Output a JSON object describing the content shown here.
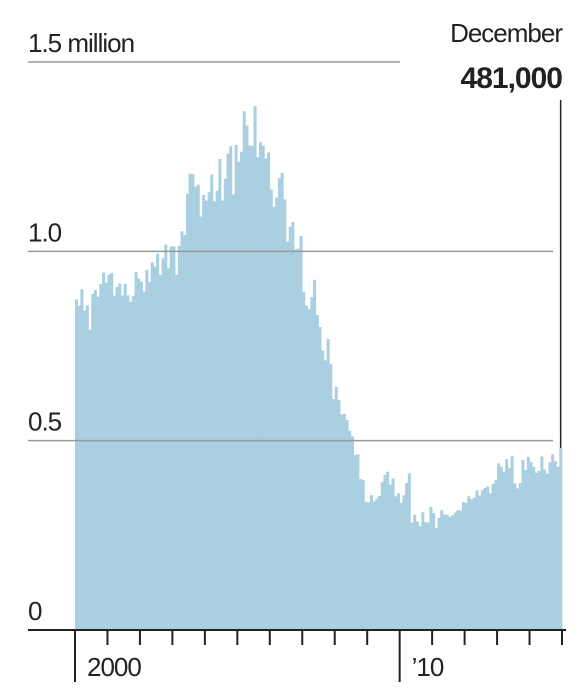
{
  "chart_data": {
    "type": "bar",
    "color": "#a9cfe1",
    "categories": [
      null,
      null,
      null,
      null,
      null,
      null,
      null,
      null,
      null,
      null,
      null,
      null,
      null,
      null,
      null,
      null,
      null,
      null,
      null,
      null,
      null,
      null,
      null,
      null,
      null,
      null,
      null,
      null,
      null,
      null,
      null,
      null,
      null,
      null,
      null,
      null,
      null,
      null,
      null,
      null,
      null,
      null,
      null,
      null,
      null,
      null,
      null,
      null,
      null,
      null,
      null,
      null,
      null,
      null,
      null,
      null,
      null,
      null,
      null,
      null,
      null,
      null,
      null,
      null,
      null,
      null,
      null,
      null,
      null,
      null,
      null,
      null,
      null,
      null,
      null,
      null,
      null,
      null,
      null,
      null,
      null,
      null,
      null,
      null,
      null,
      null,
      null,
      null,
      null,
      null,
      null,
      null,
      null,
      null,
      null,
      null,
      null,
      null,
      null,
      null,
      null,
      null,
      null,
      null,
      null,
      null,
      null,
      null,
      null,
      null,
      null,
      null,
      null,
      null,
      null,
      null,
      null,
      null,
      null,
      null,
      null,
      null,
      null,
      null,
      null,
      null,
      null,
      null,
      null,
      null,
      null,
      null,
      null,
      null,
      null,
      null,
      null,
      null,
      null,
      null,
      null,
      null,
      null,
      null,
      null,
      null,
      null,
      null,
      null,
      null,
      null,
      null,
      null,
      null,
      null,
      null,
      null,
      null,
      null,
      null,
      null,
      null,
      null,
      null,
      null,
      null,
      null,
      null,
      null,
      null,
      null,
      null,
      null,
      null,
      null,
      null,
      null,
      null,
      null,
      null
    ],
    "values": [
      0.873,
      0.856,
      0.9,
      0.843,
      0.857,
      0.793,
      0.887,
      0.898,
      0.88,
      0.914,
      0.944,
      0.917,
      0.938,
      0.943,
      0.883,
      0.906,
      0.915,
      0.883,
      0.914,
      0.884,
      0.867,
      0.882,
      0.946,
      0.928,
      0.92,
      0.894,
      0.951,
      0.919,
      0.971,
      0.96,
      0.994,
      0.938,
      0.982,
      1.018,
      0.955,
      1.013,
      1.013,
      0.938,
      1.014,
      1.053,
      1.043,
      1.152,
      1.205,
      1.204,
      1.171,
      1.176,
      1.092,
      1.149,
      1.134,
      1.156,
      1.203,
      1.132,
      1.16,
      1.244,
      1.134,
      1.192,
      1.258,
      1.278,
      1.15,
      1.281,
      1.236,
      1.263,
      1.37,
      1.332,
      1.28,
      1.278,
      1.383,
      1.249,
      1.288,
      1.279,
      1.245,
      1.261,
      1.163,
      1.118,
      1.142,
      1.193,
      1.207,
      1.137,
      1.026,
      1.065,
      1.077,
      1.005,
      1.007,
      1.041,
      0.892,
      0.857,
      0.848,
      0.879,
      0.925,
      0.832,
      0.8,
      0.738,
      0.712,
      0.768,
      0.702,
      0.61,
      0.642,
      0.607,
      0.569,
      0.571,
      0.555,
      0.526,
      0.511,
      0.462,
      0.464,
      0.399,
      0.396,
      0.338,
      0.337,
      0.356,
      0.339,
      0.347,
      0.354,
      0.39,
      0.41,
      0.418,
      0.384,
      0.4,
      0.353,
      0.361,
      0.336,
      0.356,
      0.388,
      0.414,
      0.283,
      0.304,
      0.287,
      0.274,
      0.311,
      0.285,
      0.284,
      0.325,
      0.309,
      0.269,
      0.296,
      0.316,
      0.305,
      0.304,
      0.299,
      0.303,
      0.31,
      0.317,
      0.315,
      0.338,
      0.336,
      0.353,
      0.345,
      0.35,
      0.369,
      0.355,
      0.369,
      0.375,
      0.379,
      0.361,
      0.386,
      0.396,
      0.44,
      0.431,
      0.417,
      0.451,
      0.427,
      0.459,
      0.387,
      0.374,
      0.388,
      0.449,
      0.423,
      0.457,
      0.443,
      0.431,
      0.415,
      0.42,
      0.458,
      0.424,
      0.413,
      0.443,
      0.464,
      0.446,
      0.431,
      0.481
    ],
    "ylim": [
      0,
      1.5
    ],
    "yticks": [
      0,
      {
        "value": 0.5,
        "label": "0.5"
      },
      {
        "value": 1,
        "label": "1.0"
      },
      {
        "value": 1.5,
        "label": "1.5 million"
      }
    ],
    "xlim": [
      2000,
      2015
    ],
    "xticks": [
      2000,
      2001,
      2002,
      2003,
      2004,
      2005,
      2006,
      2007,
      2008,
      2009,
      2010,
      2011,
      2012,
      2013,
      2014,
      2015
    ],
    "xtick_labels": [
      {
        "value": 2000,
        "label": "2000"
      },
      {
        "value": 2010,
        "label": "’10"
      }
    ],
    "grid": true,
    "annotation": {
      "text": "December",
      "value_label": "481,000"
    }
  }
}
